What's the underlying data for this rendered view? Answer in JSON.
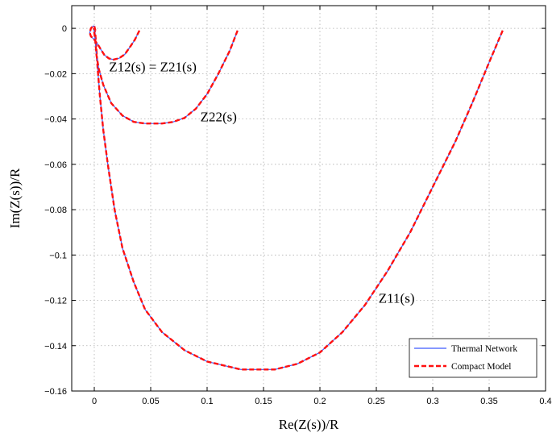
{
  "chart_data": {
    "type": "line",
    "title": "",
    "xlabel": "Re(Z(s))/R",
    "ylabel": "Im(Z(s))/R",
    "xlim": [
      -0.02,
      0.4
    ],
    "ylim": [
      -0.16,
      0.01
    ],
    "grid": true,
    "legend_position": "bottom-right",
    "x_ticks": [
      0,
      0.05,
      0.1,
      0.15,
      0.2,
      0.25,
      0.3,
      0.35,
      0.4
    ],
    "x_tick_labels": [
      "0",
      "0.05",
      "0.1",
      "0.15",
      "0.2",
      "0.25",
      "0.3",
      "0.35",
      "0.4"
    ],
    "y_ticks": [
      0,
      -0.02,
      -0.04,
      -0.06,
      -0.08,
      -0.1,
      -0.12,
      -0.14,
      -0.16
    ],
    "y_tick_labels": [
      "0",
      "−0.02",
      "−0.04",
      "−0.06",
      "−0.08",
      "−0.1",
      "−0.12",
      "−0.14",
      "−0.16"
    ],
    "annotations": [
      {
        "text": "Z12(s) = Z21(s)",
        "x": 0.013,
        "y": -0.019
      },
      {
        "text": "Z22(s)",
        "x": 0.094,
        "y": -0.041
      },
      {
        "text": "Z11(s)",
        "x": 0.252,
        "y": -0.121
      }
    ],
    "legend": [
      {
        "name": "Thermal Network",
        "color": "#3f5bff",
        "style": "solid"
      },
      {
        "name": "Compact Model",
        "color": "#ff1010",
        "style": "dashed"
      }
    ],
    "curves": [
      {
        "label": "Z11(s)",
        "points": [
          [
            0.362,
            -0.001
          ],
          [
            0.35,
            -0.015
          ],
          [
            0.335,
            -0.033
          ],
          [
            0.32,
            -0.05
          ],
          [
            0.3,
            -0.07
          ],
          [
            0.28,
            -0.09
          ],
          [
            0.26,
            -0.107
          ],
          [
            0.24,
            -0.122
          ],
          [
            0.22,
            -0.134
          ],
          [
            0.2,
            -0.143
          ],
          [
            0.18,
            -0.148
          ],
          [
            0.16,
            -0.1505
          ],
          [
            0.13,
            -0.1505
          ],
          [
            0.1,
            -0.147
          ],
          [
            0.08,
            -0.142
          ],
          [
            0.06,
            -0.134
          ],
          [
            0.045,
            -0.124
          ],
          [
            0.035,
            -0.112
          ],
          [
            0.025,
            -0.097
          ],
          [
            0.018,
            -0.08
          ],
          [
            0.012,
            -0.06
          ],
          [
            0.008,
            -0.045
          ],
          [
            0.005,
            -0.03
          ],
          [
            0.003,
            -0.018
          ],
          [
            0.002,
            -0.01
          ],
          [
            0.001,
            -0.003
          ],
          [
            0.0,
            0.0
          ]
        ]
      },
      {
        "label": "Z22(s)",
        "points": [
          [
            0.127,
            -0.001
          ],
          [
            0.12,
            -0.01
          ],
          [
            0.11,
            -0.02
          ],
          [
            0.1,
            -0.029
          ],
          [
            0.09,
            -0.0355
          ],
          [
            0.08,
            -0.0395
          ],
          [
            0.07,
            -0.0413
          ],
          [
            0.06,
            -0.042
          ],
          [
            0.045,
            -0.042
          ],
          [
            0.035,
            -0.0413
          ],
          [
            0.025,
            -0.0385
          ],
          [
            0.015,
            -0.033
          ],
          [
            0.008,
            -0.025
          ],
          [
            0.004,
            -0.018
          ],
          [
            0.002,
            -0.012
          ],
          [
            0.001,
            -0.006
          ],
          [
            0.0,
            -0.002
          ],
          [
            -0.0005,
            0.0
          ]
        ]
      },
      {
        "label": "Z12(s) = Z21(s)",
        "points": [
          [
            0.04,
            -0.001
          ],
          [
            0.036,
            -0.005
          ],
          [
            0.032,
            -0.008
          ],
          [
            0.027,
            -0.0115
          ],
          [
            0.022,
            -0.0132
          ],
          [
            0.017,
            -0.0138
          ],
          [
            0.013,
            -0.0133
          ],
          [
            0.009,
            -0.0118
          ],
          [
            0.006,
            -0.0095
          ],
          [
            0.003,
            -0.007
          ],
          [
            0.0,
            -0.005
          ],
          [
            -0.003,
            -0.0035
          ],
          [
            -0.004,
            -0.002
          ],
          [
            -0.003,
            0.0
          ],
          [
            -0.001,
            0.001
          ],
          [
            0.0,
            0.001
          ],
          [
            0.001,
            -0.001
          ]
        ]
      }
    ]
  }
}
